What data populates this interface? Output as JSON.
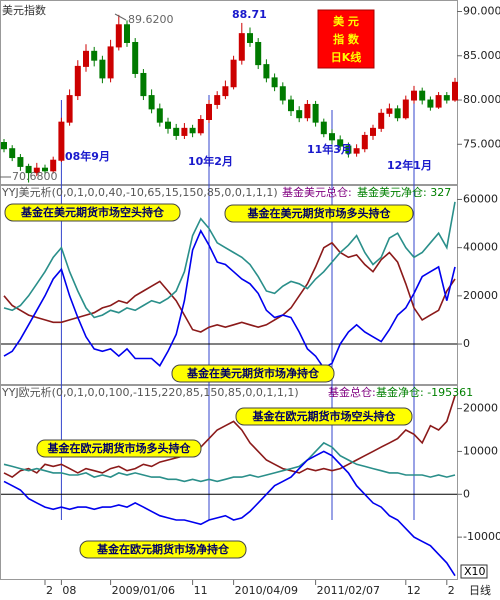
{
  "chart_data": [
    {
      "type": "candlestick",
      "title": "美元指数",
      "badge": [
        "美 元",
        "指 数",
        "日K线"
      ],
      "annotations": [
        "89.6200",
        "88.71",
        "70.6800",
        "08年9月",
        "10年2月",
        "11年3月",
        "12年1月"
      ],
      "up_color": "#cc0000",
      "down_color": "#007a00",
      "open": [
        75.2,
        74.5,
        73.5,
        72.5,
        71.8,
        72.3,
        72.0,
        73.2,
        77.5,
        80.5,
        83.8,
        85.5,
        84.5,
        82.5,
        86.0,
        88.5,
        86.5,
        83.0,
        80.5,
        79.0,
        77.5,
        76.8,
        76.0,
        76.8,
        76.3,
        77.8,
        79.5,
        80.5,
        81.5,
        84.5,
        87.5,
        86.5,
        84.0,
        82.5,
        81.5,
        80.0,
        78.8,
        78.0,
        79.5,
        77.5,
        76.2,
        75.5,
        74.8,
        74.0,
        74.5,
        76.0,
        76.8,
        78.5,
        79.0,
        78.0,
        80.0,
        81.0,
        80.0,
        79.2,
        80.5,
        80.0
      ],
      "high": [
        75.6,
        74.9,
        73.9,
        72.8,
        72.9,
        72.7,
        73.6,
        78.0,
        81.2,
        84.5,
        86.3,
        86.0,
        85.0,
        86.8,
        89.62,
        89.0,
        87.0,
        83.5,
        81.2,
        79.6,
        78.0,
        77.3,
        77.4,
        77.2,
        78.3,
        80.0,
        81.0,
        82.2,
        85.0,
        88.71,
        88.2,
        87.0,
        84.6,
        83.0,
        82.0,
        80.5,
        79.3,
        80.0,
        79.9,
        77.9,
        76.7,
        76.0,
        75.2,
        75.0,
        76.4,
        77.2,
        79.0,
        79.6,
        79.4,
        80.5,
        81.6,
        81.4,
        80.4,
        80.9,
        80.9,
        82.5
      ],
      "low": [
        74.1,
        73.1,
        72.0,
        70.68,
        71.4,
        71.5,
        71.7,
        73.0,
        77.1,
        80.0,
        83.2,
        83.8,
        81.9,
        82.0,
        85.6,
        86.0,
        82.5,
        80.0,
        78.5,
        77.0,
        76.2,
        75.5,
        75.6,
        75.8,
        76.0,
        77.4,
        79.0,
        80.1,
        81.2,
        84.0,
        86.0,
        83.5,
        82.0,
        81.0,
        79.5,
        78.2,
        77.5,
        77.6,
        77.0,
        75.8,
        75.0,
        74.3,
        73.5,
        73.6,
        74.1,
        75.5,
        76.4,
        78.1,
        77.6,
        77.8,
        79.6,
        79.5,
        78.8,
        79.0,
        79.6,
        79.8
      ],
      "close": [
        74.5,
        73.5,
        72.5,
        71.8,
        72.3,
        72.0,
        73.2,
        77.5,
        80.5,
        83.8,
        85.5,
        84.5,
        82.5,
        86.0,
        88.5,
        86.5,
        83.0,
        80.5,
        79.0,
        77.5,
        76.8,
        76.0,
        76.8,
        76.3,
        77.8,
        79.5,
        80.5,
        81.5,
        84.5,
        87.5,
        86.5,
        84.0,
        82.5,
        81.5,
        80.0,
        78.8,
        78.0,
        79.5,
        77.5,
        76.2,
        75.5,
        74.8,
        74.0,
        74.5,
        76.0,
        76.8,
        78.5,
        79.0,
        78.0,
        80.0,
        81.0,
        80.0,
        79.2,
        80.5,
        80.0,
        82.0
      ],
      "ylim": [
        70.4,
        91.3
      ],
      "yticks": [
        {
          "value": 90,
          "label": "90.0000"
        },
        {
          "value": 85,
          "label": "85.0000"
        },
        {
          "value": 80,
          "label": "80.0000"
        },
        {
          "value": 75,
          "label": "75.0000"
        }
      ]
    },
    {
      "type": "line",
      "title": "YYJ美元析(0,0,1,0,0,40,-10,65,15,150,85,0,0,1,1,1)",
      "subtitles": [
        "基金美元总仓:",
        "基金美元净仓: 327"
      ],
      "zero_line": true,
      "series": [
        {
          "name": "基金在美元期货市场空头持仓",
          "color": "#8b1a1a",
          "values": [
            20000,
            16000,
            14000,
            12000,
            11000,
            10000,
            9000,
            9000,
            10000,
            11000,
            12000,
            13000,
            15000,
            16000,
            18000,
            17000,
            20000,
            22000,
            24000,
            26000,
            22000,
            18000,
            12000,
            6000,
            5000,
            7000,
            8000,
            7000,
            8000,
            9000,
            8000,
            7000,
            8000,
            10000,
            12000,
            15000,
            20000,
            25000,
            32000,
            40000,
            42000,
            38000,
            36000,
            37000,
            33000,
            30000,
            35000,
            38000,
            34000,
            25000,
            15000,
            10000,
            12000,
            14000,
            22000,
            27000
          ]
        },
        {
          "name": "基金在美元期货市场多头持仓",
          "color": "#2a8f8a",
          "values": [
            15000,
            14000,
            16000,
            20000,
            25000,
            30000,
            36000,
            40000,
            30000,
            22000,
            15000,
            11000,
            12000,
            14000,
            13000,
            15000,
            14000,
            16000,
            18000,
            17000,
            19000,
            22000,
            30000,
            45000,
            52000,
            48000,
            42000,
            40000,
            38000,
            36000,
            33000,
            28000,
            22000,
            21000,
            24000,
            26000,
            25000,
            23000,
            27000,
            30000,
            34000,
            38000,
            41000,
            45000,
            38000,
            33000,
            36000,
            44000,
            46000,
            40000,
            36000,
            38000,
            42000,
            46000,
            40000,
            59000
          ]
        },
        {
          "name": "基金在美元期货市场净持仓",
          "color": "#0000ee",
          "values": [
            -5000,
            -3000,
            2000,
            8000,
            14000,
            20000,
            27000,
            31000,
            20000,
            11000,
            3000,
            -2000,
            -3000,
            -2000,
            -5000,
            -2000,
            -6000,
            -6000,
            -6000,
            -9000,
            -3000,
            4000,
            18000,
            39000,
            47000,
            41000,
            34000,
            33000,
            30000,
            27000,
            25000,
            21000,
            14000,
            11000,
            12000,
            11000,
            5000,
            -2000,
            -5000,
            -10000,
            -8000,
            0,
            5000,
            8000,
            5000,
            3000,
            1000,
            6000,
            12000,
            15000,
            21000,
            28000,
            30000,
            32000,
            18000,
            32000
          ]
        }
      ],
      "ylim": [
        -17000,
        66000
      ],
      "yticks": [
        60000,
        40000,
        20000,
        0
      ]
    },
    {
      "type": "line",
      "title": "YYJ欧元析(0,0,1,0,0,100,-115,220,85,150,85,0,0,1,1,1)",
      "subtitles": [
        "基金总仓:",
        "基金净仓: -195361"
      ],
      "zero_line": true,
      "series": [
        {
          "name": "基金在欧元期货市场空头持仓",
          "color": "#8b1a1a",
          "values": [
            5000,
            4000,
            5500,
            6000,
            5000,
            7000,
            6500,
            7000,
            6000,
            5000,
            6000,
            5500,
            5000,
            6000,
            6500,
            5500,
            6000,
            7000,
            6500,
            7500,
            8000,
            8500,
            9000,
            10000,
            11000,
            13000,
            15000,
            16000,
            17000,
            15000,
            12000,
            10000,
            8000,
            7000,
            6000,
            5500,
            5000,
            6000,
            5500,
            6000,
            5500,
            6000,
            7000,
            8000,
            9000,
            10000,
            11000,
            12000,
            13000,
            15000,
            14000,
            12000,
            16000,
            15000,
            17000,
            23000
          ]
        },
        {
          "name": "基金在欧元期货市场多头持仓",
          "color": "#2a8f8a",
          "values": [
            7000,
            6500,
            6000,
            5500,
            6000,
            5500,
            5000,
            5000,
            4500,
            4500,
            5000,
            4000,
            4500,
            4000,
            5000,
            4500,
            5000,
            4500,
            4000,
            4000,
            3500,
            3500,
            3000,
            3500,
            3000,
            3500,
            3000,
            3500,
            4000,
            4000,
            4500,
            4000,
            4500,
            5000,
            5500,
            6000,
            6500,
            8000,
            10000,
            12000,
            11000,
            9000,
            8000,
            7000,
            6500,
            6000,
            5500,
            5000,
            5000,
            4500,
            4500,
            4500,
            4000,
            4500,
            4000,
            4500
          ]
        },
        {
          "name": "基金在欧元期货市场净持仓",
          "color": "#0000ee",
          "values": [
            3000,
            2000,
            1000,
            -1000,
            -2000,
            -3000,
            -3500,
            -3000,
            -3500,
            -3000,
            -3000,
            -3500,
            -3000,
            -3000,
            -2500,
            -3000,
            -2000,
            -3000,
            -4000,
            -5000,
            -5500,
            -6000,
            -6000,
            -6500,
            -7000,
            -6000,
            -5500,
            -5000,
            -6000,
            -5500,
            -4000,
            -2000,
            0,
            2000,
            3000,
            4000,
            6000,
            8000,
            9000,
            10000,
            9000,
            7000,
            5000,
            2000,
            0,
            -2000,
            -3000,
            -5000,
            -6000,
            -8000,
            -10000,
            -11000,
            -12000,
            -14000,
            -16000,
            -19000
          ]
        }
      ],
      "ylim": [
        -20000,
        25500
      ],
      "yticks": [
        20000,
        10000,
        0,
        -10000
      ],
      "xlim": [
        0,
        55
      ],
      "xticks": [
        {
          "value": 5,
          "label": "2"
        },
        {
          "value": 7,
          "label": "08"
        },
        {
          "value": 13,
          "label": "2009/01/06"
        },
        {
          "value": 23,
          "label": "11"
        },
        {
          "value": 28,
          "label": "2010/04/09"
        },
        {
          "value": 38,
          "label": "2011/02/07"
        },
        {
          "value": 49,
          "label": "12"
        },
        {
          "value": 54,
          "label": "2"
        }
      ],
      "period": "日线",
      "zoom": "X10"
    }
  ]
}
